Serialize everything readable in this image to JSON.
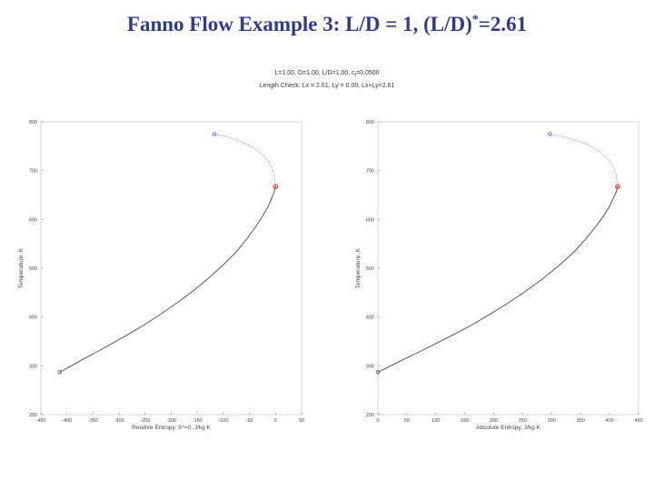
{
  "slide": {
    "title_main": "Fanno Flow Example 3: L/D = 1, (L/D)",
    "title_sup": "*",
    "title_tail": "=2.61"
  },
  "figure": {
    "header_line1_pre": "L=1.00, D=1.00, L/D=1.00, c",
    "header_line1_sub": "f",
    "header_line1_post": "=0.0500",
    "header_line2": "Length Check: Lx = 2.61, Ly = 0.00, Lx+Ly=2.61"
  },
  "colors": {
    "title": "#2f3b8f",
    "curve_main": "#333333",
    "curve_upper": "#4a5fc4",
    "start_marker": "#444466",
    "end_marker": "#3a4fd0",
    "sonic_marker": "#dd3333"
  },
  "chart_data": [
    {
      "type": "line",
      "xlabel": "Relative Entropy, S*=0, J/kg K",
      "ylabel": "Temperature, K",
      "xlim": [
        -450,
        50
      ],
      "ylim": [
        200,
        800
      ],
      "xticks": [
        "-450",
        "-400",
        "-350",
        "-300",
        "-250",
        "-200",
        "-150",
        "-100",
        "-50",
        "0",
        "50"
      ],
      "yticks": [
        "200",
        "300",
        "400",
        "500",
        "600",
        "700",
        "800"
      ],
      "series": [
        {
          "style": "solid-dark",
          "x": [
            -414,
            -395,
            -370,
            -340,
            -310,
            -280,
            -250,
            -220,
            -190,
            -160,
            -130,
            -100,
            -75,
            -55,
            -40,
            -25,
            -15,
            -8,
            -3,
            -1,
            0
          ],
          "y": [
            287,
            298,
            313,
            330,
            348,
            366,
            385,
            406,
            428,
            452,
            478,
            507,
            534,
            560,
            582,
            606,
            625,
            642,
            655,
            663,
            667
          ]
        },
        {
          "style": "dotted-blue",
          "x": [
            0,
            -1,
            -3,
            -7,
            -13,
            -22,
            -35,
            -52,
            -72,
            -95,
            -117
          ],
          "y": [
            667,
            680,
            693,
            706,
            718,
            730,
            742,
            753,
            762,
            770,
            775
          ]
        }
      ],
      "points": [
        {
          "name": "start",
          "x": -414,
          "y": 287
        },
        {
          "name": "end",
          "x": -117,
          "y": 775
        },
        {
          "name": "sonic",
          "x": 0,
          "y": 667
        }
      ]
    },
    {
      "type": "line",
      "xlabel": "Absolute Entropy, J/kg K",
      "ylabel": "Temperature, K",
      "xlim": [
        0,
        450
      ],
      "ylim": [
        200,
        800
      ],
      "xticks": [
        "0",
        "50",
        "100",
        "150",
        "200",
        "250",
        "300",
        "350",
        "400",
        "450"
      ],
      "yticks": [
        "200",
        "300",
        "400",
        "500",
        "600",
        "700",
        "800"
      ],
      "series": [
        {
          "style": "solid-dark",
          "x": [
            0,
            19,
            44,
            74,
            104,
            134,
            164,
            194,
            224,
            254,
            284,
            314,
            339,
            359,
            374,
            389,
            399,
            406,
            411,
            413,
            414
          ],
          "y": [
            287,
            298,
            313,
            330,
            348,
            366,
            385,
            406,
            428,
            452,
            478,
            507,
            534,
            560,
            582,
            606,
            625,
            642,
            655,
            663,
            667
          ]
        },
        {
          "style": "dotted-blue",
          "x": [
            414,
            413,
            411,
            407,
            401,
            392,
            379,
            362,
            342,
            319,
            297
          ],
          "y": [
            667,
            680,
            693,
            706,
            718,
            730,
            742,
            753,
            762,
            770,
            775
          ]
        }
      ],
      "points": [
        {
          "name": "start",
          "x": 0,
          "y": 287
        },
        {
          "name": "end",
          "x": 297,
          "y": 775
        },
        {
          "name": "sonic",
          "x": 414,
          "y": 667
        }
      ]
    }
  ]
}
